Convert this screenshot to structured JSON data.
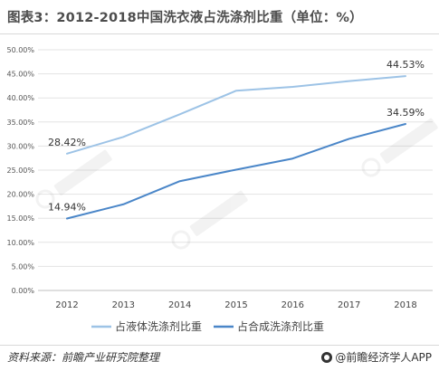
{
  "header": {
    "title": "图表3：2012-2018中国洗衣液占洗涤剂比重（单位：%）"
  },
  "footer": {
    "source": "资料来源：前瞻产业研究院整理",
    "brand": "@前瞻经济学人APP"
  },
  "chart_data": {
    "type": "line",
    "title": "图表3：2012-2018中国洗衣液占洗涤剂比重（单位：%）",
    "xlabel": "",
    "ylabel": "",
    "categories": [
      "2012",
      "2013",
      "2014",
      "2015",
      "2016",
      "2017",
      "2018"
    ],
    "ylim": [
      0,
      50
    ],
    "yticks": [
      "0.00%",
      "5.00%",
      "10.00%",
      "15.00%",
      "20.00%",
      "25.00%",
      "30.00%",
      "35.00%",
      "40.00%",
      "45.00%",
      "50.00%"
    ],
    "grid": true,
    "legend_position": "bottom",
    "series": [
      {
        "name": "占液体洗涤剂比重",
        "color": "#9dc3e6",
        "values": [
          28.42,
          31.9,
          36.6,
          41.5,
          42.3,
          43.5,
          44.53
        ],
        "labels": {
          "0": "28.42%",
          "6": "44.53%"
        }
      },
      {
        "name": "占合成洗涤剂比重",
        "color": "#4a86c8",
        "values": [
          14.94,
          17.9,
          22.7,
          25.1,
          27.4,
          31.5,
          34.59
        ],
        "labels": {
          "0": "14.94%",
          "6": "34.59%"
        }
      }
    ]
  }
}
